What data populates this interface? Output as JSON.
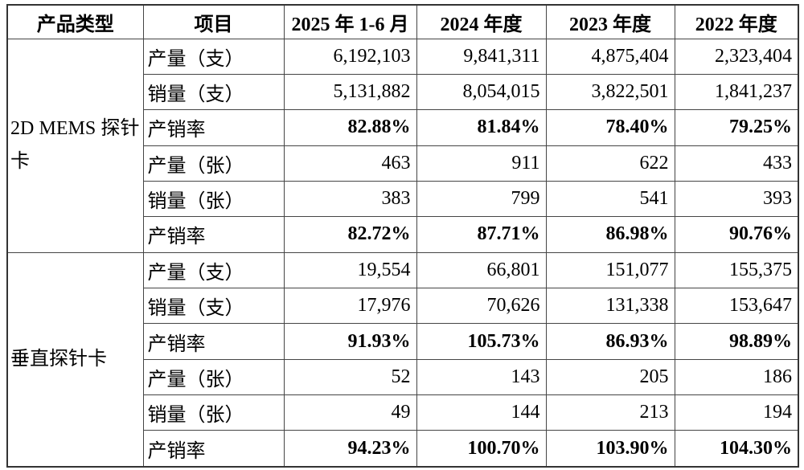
{
  "colors": {
    "border": "#454545",
    "outer_border": "#333333",
    "text": "#000000",
    "background": "#ffffff"
  },
  "table": {
    "headers": [
      "产品类型",
      "项目",
      "2025 年 1-6 月",
      "2024 年度",
      "2023 年度",
      "2022 年度"
    ],
    "sections": [
      {
        "product": "2D MEMS 探针卡",
        "rows": [
          {
            "item": "产量（支）",
            "bold": false,
            "values": [
              "6,192,103",
              "9,841,311",
              "4,875,404",
              "2,323,404"
            ]
          },
          {
            "item": "销量（支）",
            "bold": false,
            "values": [
              "5,131,882",
              "8,054,015",
              "3,822,501",
              "1,841,237"
            ]
          },
          {
            "item": "产销率",
            "bold": true,
            "values": [
              "82.88%",
              "81.84%",
              "78.40%",
              "79.25%"
            ]
          },
          {
            "item": "产量（张）",
            "bold": false,
            "values": [
              "463",
              "911",
              "622",
              "433"
            ]
          },
          {
            "item": "销量（张）",
            "bold": false,
            "values": [
              "383",
              "799",
              "541",
              "393"
            ]
          },
          {
            "item": "产销率",
            "bold": true,
            "values": [
              "82.72%",
              "87.71%",
              "86.98%",
              "90.76%"
            ]
          }
        ]
      },
      {
        "product": "垂直探针卡",
        "rows": [
          {
            "item": "产量（支）",
            "bold": false,
            "values": [
              "19,554",
              "66,801",
              "151,077",
              "155,375"
            ]
          },
          {
            "item": "销量（支）",
            "bold": false,
            "values": [
              "17,976",
              "70,626",
              "131,338",
              "153,647"
            ]
          },
          {
            "item": "产销率",
            "bold": true,
            "values": [
              "91.93%",
              "105.73%",
              "86.93%",
              "98.89%"
            ]
          },
          {
            "item": "产量（张）",
            "bold": false,
            "values": [
              "52",
              "143",
              "205",
              "186"
            ]
          },
          {
            "item": "销量（张）",
            "bold": false,
            "values": [
              "49",
              "144",
              "213",
              "194"
            ]
          },
          {
            "item": "产销率",
            "bold": true,
            "values": [
              "94.23%",
              "100.70%",
              "103.90%",
              "104.30%"
            ]
          }
        ]
      }
    ]
  }
}
